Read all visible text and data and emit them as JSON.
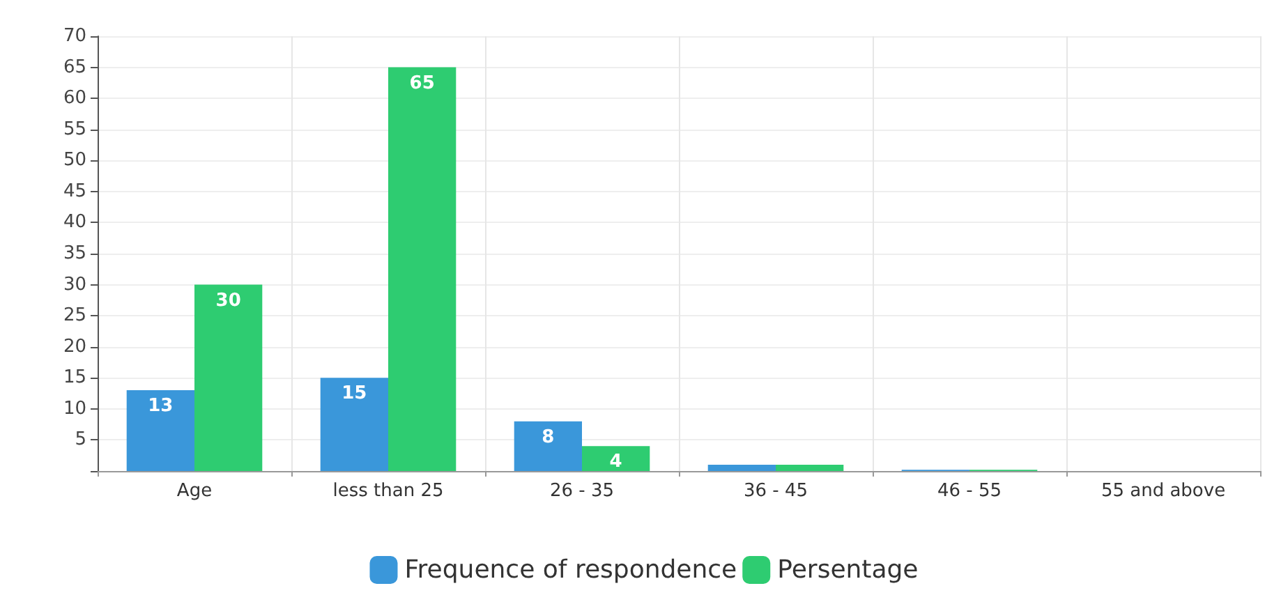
{
  "chart_data": {
    "type": "bar",
    "categories": [
      "Age",
      "less than 25",
      "26 - 35",
      "36 - 45",
      "46 - 55",
      "55 and above"
    ],
    "series": [
      {
        "name": "Frequence of respondence",
        "color": "#3a97da",
        "values": [
          13,
          15,
          8,
          1,
          0.2,
          0
        ],
        "value_labels": [
          "13",
          "15",
          "8",
          null,
          null,
          null
        ]
      },
      {
        "name": "Persentage",
        "color": "#2ecc71",
        "values": [
          30,
          65,
          4,
          1,
          0.2,
          0
        ],
        "value_labels": [
          "30",
          "65",
          "4",
          null,
          null,
          null
        ]
      }
    ],
    "ylim": [
      0,
      70
    ],
    "yticks": [
      {
        "value": 0,
        "label": null
      },
      5,
      10,
      15,
      20,
      25,
      30,
      35,
      40,
      45,
      50,
      55,
      60,
      65,
      70
    ],
    "grid": true,
    "legend": "bottom"
  }
}
